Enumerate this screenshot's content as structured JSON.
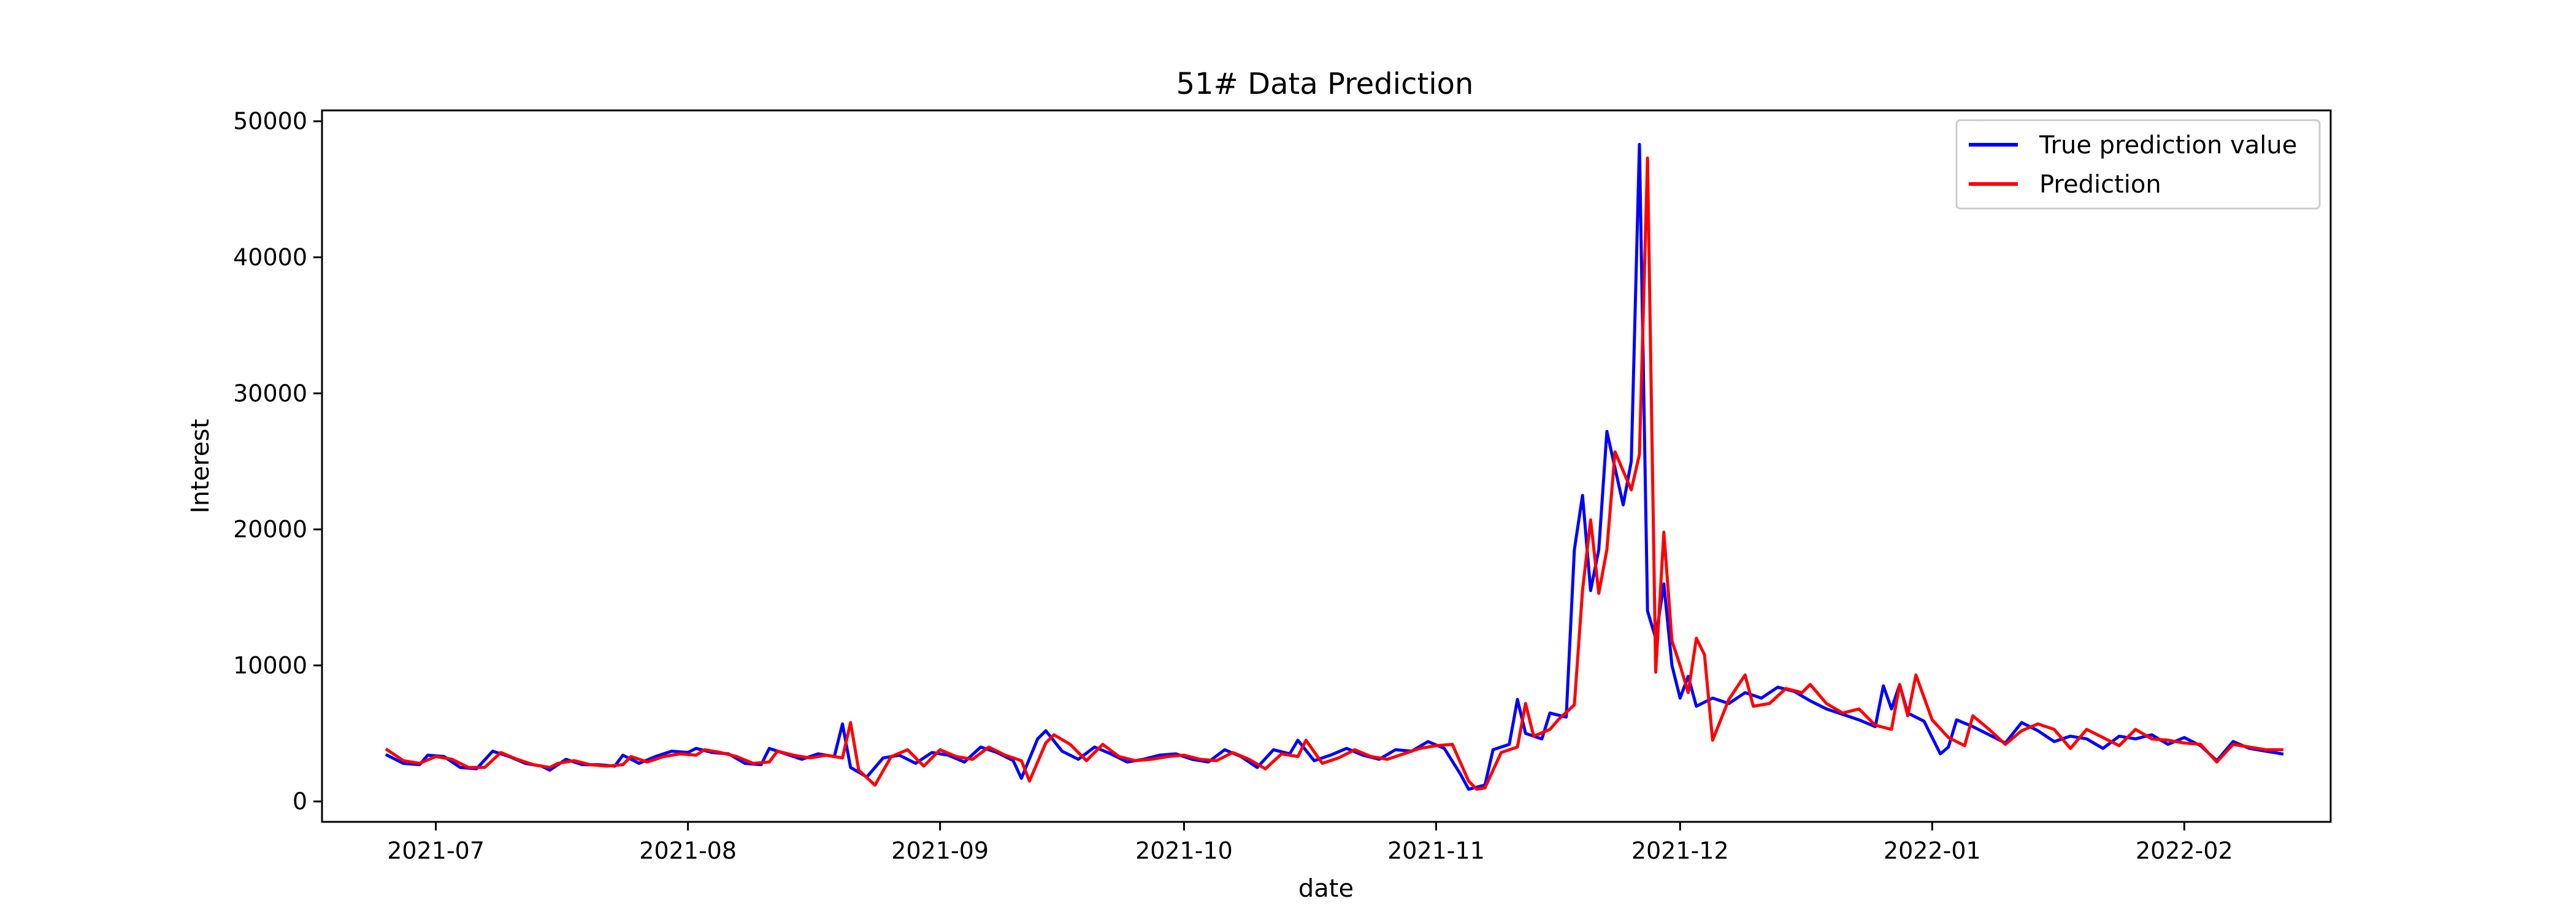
{
  "chart_data": {
    "type": "line",
    "title": "51# Data Prediction",
    "xlabel": "date",
    "ylabel": "Interest",
    "xlim": [
      "2021-06-17",
      "2022-02-19"
    ],
    "ylim": [
      -1500,
      50800
    ],
    "x_ticks": [
      "2021-07-01",
      "2021-08-01",
      "2021-09-01",
      "2021-10-01",
      "2021-11-01",
      "2021-12-01",
      "2022-01-01",
      "2022-02-01"
    ],
    "x_tick_labels": [
      "2021-07",
      "2021-08",
      "2021-09",
      "2021-10",
      "2021-11",
      "2021-12",
      "2022-01",
      "2022-02"
    ],
    "y_ticks": [
      0,
      10000,
      20000,
      30000,
      40000,
      50000
    ],
    "y_tick_labels": [
      "0",
      "10000",
      "20000",
      "30000",
      "40000",
      "50000"
    ],
    "grid": false,
    "legend_position": "top-right",
    "series": [
      {
        "name": "True prediction value",
        "color": "#0000ff",
        "points": [
          [
            "2021-06-25",
            3400
          ],
          [
            "2021-06-27",
            2800
          ],
          [
            "2021-06-29",
            2700
          ],
          [
            "2021-06-30",
            3400
          ],
          [
            "2021-07-02",
            3300
          ],
          [
            "2021-07-04",
            2500
          ],
          [
            "2021-07-06",
            2400
          ],
          [
            "2021-07-08",
            3700
          ],
          [
            "2021-07-10",
            3300
          ],
          [
            "2021-07-12",
            2800
          ],
          [
            "2021-07-14",
            2600
          ],
          [
            "2021-07-15",
            2300
          ],
          [
            "2021-07-17",
            3100
          ],
          [
            "2021-07-19",
            2700
          ],
          [
            "2021-07-21",
            2700
          ],
          [
            "2021-07-23",
            2600
          ],
          [
            "2021-07-24",
            3400
          ],
          [
            "2021-07-26",
            2800
          ],
          [
            "2021-07-28",
            3300
          ],
          [
            "2021-07-30",
            3700
          ],
          [
            "2021-08-01",
            3600
          ],
          [
            "2021-08-02",
            3900
          ],
          [
            "2021-08-04",
            3600
          ],
          [
            "2021-08-06",
            3500
          ],
          [
            "2021-08-08",
            2800
          ],
          [
            "2021-08-10",
            2700
          ],
          [
            "2021-08-11",
            3900
          ],
          [
            "2021-08-13",
            3500
          ],
          [
            "2021-08-15",
            3100
          ],
          [
            "2021-08-17",
            3500
          ],
          [
            "2021-08-19",
            3300
          ],
          [
            "2021-08-20",
            5700
          ],
          [
            "2021-08-21",
            2500
          ],
          [
            "2021-08-23",
            1800
          ],
          [
            "2021-08-25",
            3200
          ],
          [
            "2021-08-27",
            3400
          ],
          [
            "2021-08-29",
            2800
          ],
          [
            "2021-08-31",
            3600
          ],
          [
            "2021-09-02",
            3400
          ],
          [
            "2021-09-04",
            2900
          ],
          [
            "2021-09-06",
            4000
          ],
          [
            "2021-09-08",
            3600
          ],
          [
            "2021-09-10",
            3000
          ],
          [
            "2021-09-11",
            1700
          ],
          [
            "2021-09-13",
            4600
          ],
          [
            "2021-09-14",
            5200
          ],
          [
            "2021-09-16",
            3700
          ],
          [
            "2021-09-18",
            3100
          ],
          [
            "2021-09-20",
            4000
          ],
          [
            "2021-09-22",
            3500
          ],
          [
            "2021-09-24",
            2900
          ],
          [
            "2021-09-26",
            3100
          ],
          [
            "2021-09-28",
            3400
          ],
          [
            "2021-09-30",
            3500
          ],
          [
            "2021-10-02",
            3100
          ],
          [
            "2021-10-04",
            2900
          ],
          [
            "2021-10-06",
            3800
          ],
          [
            "2021-10-08",
            3300
          ],
          [
            "2021-10-10",
            2500
          ],
          [
            "2021-10-12",
            3800
          ],
          [
            "2021-10-14",
            3500
          ],
          [
            "2021-10-15",
            4500
          ],
          [
            "2021-10-17",
            3000
          ],
          [
            "2021-10-19",
            3400
          ],
          [
            "2021-10-21",
            3900
          ],
          [
            "2021-10-23",
            3400
          ],
          [
            "2021-10-25",
            3100
          ],
          [
            "2021-10-27",
            3800
          ],
          [
            "2021-10-29",
            3700
          ],
          [
            "2021-10-31",
            4400
          ],
          [
            "2021-11-02",
            3900
          ],
          [
            "2021-11-04",
            2000
          ],
          [
            "2021-11-05",
            900
          ],
          [
            "2021-11-07",
            1200
          ],
          [
            "2021-11-08",
            3800
          ],
          [
            "2021-11-10",
            4200
          ],
          [
            "2021-11-11",
            7500
          ],
          [
            "2021-11-12",
            5000
          ],
          [
            "2021-11-14",
            4600
          ],
          [
            "2021-11-15",
            6500
          ],
          [
            "2021-11-17",
            6200
          ],
          [
            "2021-11-18",
            18500
          ],
          [
            "2021-11-19",
            22500
          ],
          [
            "2021-11-20",
            15500
          ],
          [
            "2021-11-21",
            18500
          ],
          [
            "2021-11-22",
            27200
          ],
          [
            "2021-11-24",
            21800
          ],
          [
            "2021-11-25",
            25000
          ],
          [
            "2021-11-26",
            48300
          ],
          [
            "2021-11-27",
            14000
          ],
          [
            "2021-11-28",
            12000
          ],
          [
            "2021-11-29",
            16000
          ],
          [
            "2021-11-30",
            10000
          ],
          [
            "2021-12-01",
            7600
          ],
          [
            "2021-12-02",
            9200
          ],
          [
            "2021-12-03",
            7000
          ],
          [
            "2021-12-05",
            7600
          ],
          [
            "2021-12-07",
            7200
          ],
          [
            "2021-12-09",
            8000
          ],
          [
            "2021-12-11",
            7600
          ],
          [
            "2021-12-13",
            8400
          ],
          [
            "2021-12-15",
            8100
          ],
          [
            "2021-12-17",
            7400
          ],
          [
            "2021-12-19",
            6800
          ],
          [
            "2021-12-21",
            6400
          ],
          [
            "2021-12-23",
            6000
          ],
          [
            "2021-12-25",
            5500
          ],
          [
            "2021-12-26",
            8500
          ],
          [
            "2021-12-27",
            6800
          ],
          [
            "2021-12-28",
            8600
          ],
          [
            "2021-12-29",
            6500
          ],
          [
            "2021-12-31",
            5900
          ],
          [
            "2022-01-02",
            3500
          ],
          [
            "2022-01-03",
            4000
          ],
          [
            "2022-01-04",
            6000
          ],
          [
            "2022-01-06",
            5500
          ],
          [
            "2022-01-08",
            4900
          ],
          [
            "2022-01-10",
            4300
          ],
          [
            "2022-01-12",
            5800
          ],
          [
            "2022-01-14",
            5200
          ],
          [
            "2022-01-16",
            4400
          ],
          [
            "2022-01-18",
            4800
          ],
          [
            "2022-01-20",
            4600
          ],
          [
            "2022-01-22",
            3900
          ],
          [
            "2022-01-24",
            4800
          ],
          [
            "2022-01-26",
            4600
          ],
          [
            "2022-01-28",
            4900
          ],
          [
            "2022-01-30",
            4200
          ],
          [
            "2022-02-01",
            4700
          ],
          [
            "2022-02-03",
            4100
          ],
          [
            "2022-02-05",
            3000
          ],
          [
            "2022-02-07",
            4400
          ],
          [
            "2022-02-09",
            3900
          ],
          [
            "2022-02-11",
            3700
          ],
          [
            "2022-02-13",
            3500
          ]
        ]
      },
      {
        "name": "Prediction",
        "color": "#ff0000",
        "points": [
          [
            "2021-06-25",
            3800
          ],
          [
            "2021-06-27",
            3000
          ],
          [
            "2021-06-29",
            2800
          ],
          [
            "2021-07-01",
            3300
          ],
          [
            "2021-07-03",
            3100
          ],
          [
            "2021-07-05",
            2500
          ],
          [
            "2021-07-07",
            2500
          ],
          [
            "2021-07-09",
            3600
          ],
          [
            "2021-07-11",
            3100
          ],
          [
            "2021-07-13",
            2700
          ],
          [
            "2021-07-15",
            2500
          ],
          [
            "2021-07-16",
            2800
          ],
          [
            "2021-07-18",
            3000
          ],
          [
            "2021-07-20",
            2700
          ],
          [
            "2021-07-22",
            2600
          ],
          [
            "2021-07-24",
            2700
          ],
          [
            "2021-07-25",
            3300
          ],
          [
            "2021-07-27",
            2900
          ],
          [
            "2021-07-29",
            3300
          ],
          [
            "2021-07-31",
            3500
          ],
          [
            "2021-08-02",
            3400
          ],
          [
            "2021-08-03",
            3800
          ],
          [
            "2021-08-05",
            3600
          ],
          [
            "2021-08-07",
            3300
          ],
          [
            "2021-08-09",
            2800
          ],
          [
            "2021-08-11",
            2900
          ],
          [
            "2021-08-12",
            3700
          ],
          [
            "2021-08-14",
            3400
          ],
          [
            "2021-08-16",
            3200
          ],
          [
            "2021-08-18",
            3400
          ],
          [
            "2021-08-20",
            3200
          ],
          [
            "2021-08-21",
            5800
          ],
          [
            "2021-08-22",
            2300
          ],
          [
            "2021-08-24",
            1200
          ],
          [
            "2021-08-26",
            3300
          ],
          [
            "2021-08-28",
            3800
          ],
          [
            "2021-08-30",
            2600
          ],
          [
            "2021-09-01",
            3800
          ],
          [
            "2021-09-03",
            3300
          ],
          [
            "2021-09-05",
            3100
          ],
          [
            "2021-09-07",
            4000
          ],
          [
            "2021-09-09",
            3400
          ],
          [
            "2021-09-11",
            3000
          ],
          [
            "2021-09-12",
            1500
          ],
          [
            "2021-09-14",
            4300
          ],
          [
            "2021-09-15",
            4900
          ],
          [
            "2021-09-17",
            4200
          ],
          [
            "2021-09-19",
            3000
          ],
          [
            "2021-09-21",
            4200
          ],
          [
            "2021-09-23",
            3300
          ],
          [
            "2021-09-25",
            3000
          ],
          [
            "2021-09-27",
            3100
          ],
          [
            "2021-09-29",
            3300
          ],
          [
            "2021-10-01",
            3400
          ],
          [
            "2021-10-03",
            3100
          ],
          [
            "2021-10-05",
            3000
          ],
          [
            "2021-10-07",
            3600
          ],
          [
            "2021-10-09",
            3100
          ],
          [
            "2021-10-11",
            2400
          ],
          [
            "2021-10-13",
            3500
          ],
          [
            "2021-10-15",
            3300
          ],
          [
            "2021-10-16",
            4500
          ],
          [
            "2021-10-18",
            2800
          ],
          [
            "2021-10-20",
            3200
          ],
          [
            "2021-10-22",
            3800
          ],
          [
            "2021-10-24",
            3300
          ],
          [
            "2021-10-26",
            3100
          ],
          [
            "2021-10-28",
            3500
          ],
          [
            "2021-10-30",
            3900
          ],
          [
            "2021-11-01",
            4100
          ],
          [
            "2021-11-03",
            4200
          ],
          [
            "2021-11-05",
            1500
          ],
          [
            "2021-11-06",
            900
          ],
          [
            "2021-11-07",
            1000
          ],
          [
            "2021-11-09",
            3600
          ],
          [
            "2021-11-11",
            4000
          ],
          [
            "2021-11-12",
            7200
          ],
          [
            "2021-11-13",
            4800
          ],
          [
            "2021-11-15",
            5300
          ],
          [
            "2021-11-16",
            6000
          ],
          [
            "2021-11-18",
            7100
          ],
          [
            "2021-11-19",
            15500
          ],
          [
            "2021-11-20",
            20700
          ],
          [
            "2021-11-21",
            15300
          ],
          [
            "2021-11-22",
            18500
          ],
          [
            "2021-11-23",
            25700
          ],
          [
            "2021-11-25",
            22900
          ],
          [
            "2021-11-26",
            25500
          ],
          [
            "2021-11-27",
            47300
          ],
          [
            "2021-11-28",
            9500
          ],
          [
            "2021-11-29",
            19800
          ],
          [
            "2021-11-30",
            11800
          ],
          [
            "2021-12-01",
            10000
          ],
          [
            "2021-12-02",
            8000
          ],
          [
            "2021-12-03",
            12000
          ],
          [
            "2021-12-04",
            10800
          ],
          [
            "2021-12-05",
            4500
          ],
          [
            "2021-12-07",
            7500
          ],
          [
            "2021-12-09",
            9300
          ],
          [
            "2021-12-10",
            7000
          ],
          [
            "2021-12-12",
            7200
          ],
          [
            "2021-12-14",
            8300
          ],
          [
            "2021-12-16",
            8000
          ],
          [
            "2021-12-17",
            8600
          ],
          [
            "2021-12-19",
            7200
          ],
          [
            "2021-12-21",
            6500
          ],
          [
            "2021-12-23",
            6800
          ],
          [
            "2021-12-25",
            5600
          ],
          [
            "2021-12-27",
            5300
          ],
          [
            "2021-12-28",
            8600
          ],
          [
            "2021-12-29",
            6300
          ],
          [
            "2021-12-30",
            9300
          ],
          [
            "2022-01-01",
            6000
          ],
          [
            "2022-01-03",
            4700
          ],
          [
            "2022-01-05",
            4100
          ],
          [
            "2022-01-06",
            6300
          ],
          [
            "2022-01-08",
            5300
          ],
          [
            "2022-01-10",
            4200
          ],
          [
            "2022-01-12",
            5200
          ],
          [
            "2022-01-14",
            5700
          ],
          [
            "2022-01-16",
            5300
          ],
          [
            "2022-01-18",
            3900
          ],
          [
            "2022-01-20",
            5300
          ],
          [
            "2022-01-22",
            4700
          ],
          [
            "2022-01-24",
            4100
          ],
          [
            "2022-01-26",
            5300
          ],
          [
            "2022-01-28",
            4600
          ],
          [
            "2022-01-30",
            4500
          ],
          [
            "2022-02-01",
            4300
          ],
          [
            "2022-02-03",
            4200
          ],
          [
            "2022-02-05",
            2900
          ],
          [
            "2022-02-07",
            4200
          ],
          [
            "2022-02-09",
            4000
          ],
          [
            "2022-02-11",
            3800
          ],
          [
            "2022-02-13",
            3800
          ]
        ]
      }
    ]
  }
}
